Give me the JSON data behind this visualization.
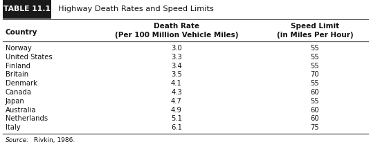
{
  "title_label": "TABLE 11.1",
  "title_text": "Highway Death Rates and Speed Limits",
  "countries": [
    "Norway",
    "United States",
    "Finland",
    "Britain",
    "Denmark",
    "Canada",
    "Japan",
    "Australia",
    "Netherlands",
    "Italy"
  ],
  "death_rates": [
    "3.0",
    "3.3",
    "3.4",
    "3.5",
    "4.1",
    "4.3",
    "4.7",
    "4.9",
    "5.1",
    "6.1"
  ],
  "speed_limits": [
    "55",
    "55",
    "55",
    "70",
    "55",
    "60",
    "55",
    "60",
    "60",
    "75"
  ],
  "source_italic": "Source:",
  "source_normal": " Rivkin, 1986.",
  "bg_color": "#ffffff",
  "header_bg": "#1a1a1a",
  "header_text_color": "#ffffff",
  "border_color": "#555555",
  "text_color": "#111111",
  "fig_width": 5.36,
  "fig_height": 2.22,
  "dpi": 100
}
